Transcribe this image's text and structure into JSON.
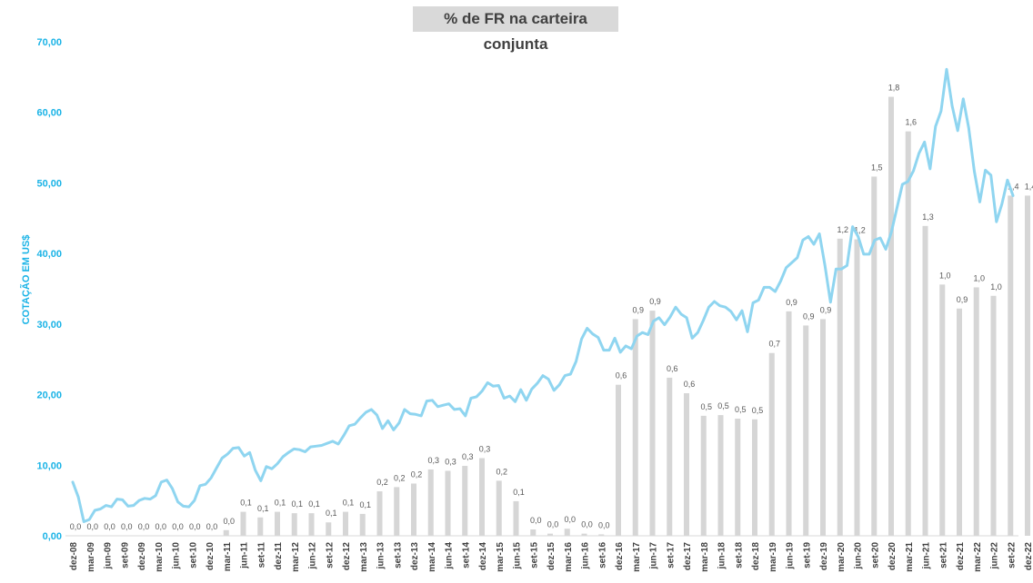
{
  "chart_data": {
    "type": "bar+line",
    "title": "% de FR na carteira conjunta",
    "ylabel": "COTAÇÃO EM US$",
    "ylim": [
      0,
      70
    ],
    "y_ticks": [
      "0,00",
      "10,00",
      "20,00",
      "30,00",
      "40,00",
      "50,00",
      "60,00",
      "70,00"
    ],
    "x_tick_labels": [
      "dez-08",
      "mar-09",
      "jun-09",
      "set-09",
      "dez-09",
      "mar-10",
      "jun-10",
      "set-10",
      "dez-10",
      "mar-11",
      "jun-11",
      "set-11",
      "dez-11",
      "mar-12",
      "jun-12",
      "set-12",
      "dez-12",
      "mar-13",
      "jun-13",
      "set-13",
      "dez-13",
      "mar-14",
      "jun-14",
      "set-14",
      "dez-14",
      "mar-15",
      "jun-15",
      "set-15",
      "dez-15",
      "mar-16",
      "jun-16",
      "set-16",
      "dez-16",
      "mar-17",
      "jun-17",
      "set-17",
      "dez-17",
      "mar-18",
      "jun-18",
      "set-18",
      "dez-18",
      "mar-19",
      "jun-19",
      "set-19",
      "dez-19",
      "mar-20",
      "jun-20",
      "set-20",
      "dez-20",
      "mar-21",
      "jun-21",
      "set-21",
      "dez-21",
      "mar-22",
      "jun-22",
      "set-22",
      "dez-22"
    ],
    "bars": {
      "values": [
        0.0,
        0.0,
        0.0,
        0.0,
        0.0,
        0.0,
        0.0,
        0.0,
        0.0,
        0.8,
        3.4,
        2.6,
        3.4,
        3.2,
        3.2,
        1.9,
        3.4,
        3.1,
        6.3,
        6.9,
        7.4,
        9.4,
        9.2,
        9.9,
        11.0,
        7.8,
        4.9,
        0.9,
        0.3,
        1.0,
        0.3,
        0.2,
        21.4,
        30.7,
        31.9,
        22.4,
        20.2,
        17.0,
        17.1,
        16.6,
        16.5,
        25.9,
        31.8,
        29.8,
        30.7,
        42.1,
        42.0,
        50.9,
        62.2,
        57.3,
        43.9,
        35.6,
        32.2,
        35.2,
        34.0,
        48.2,
        48.2
      ],
      "labels": [
        "0,0",
        "0,0",
        "0,0",
        "0,0",
        "0,0",
        "0,0",
        "0,0",
        "0,0",
        "0,0",
        "0,0",
        "0,1",
        "0,1",
        "0,1",
        "0,1",
        "0,1",
        "0,1",
        "0,1",
        "0,1",
        "0,2",
        "0,2",
        "0,2",
        "0,3",
        "0,3",
        "0,3",
        "0,3",
        "0,2",
        "0,1",
        "0,0",
        "0,0",
        "0,0",
        "0,0",
        "0,0",
        "0,6",
        "0,9",
        "0,9",
        "0,6",
        "0,6",
        "0,5",
        "0,5",
        "0,5",
        "0,5",
        "0,7",
        "0,9",
        "0,9",
        "0,9",
        "1,2",
        "1,2",
        "1,5",
        "1,8",
        "1,6",
        "1,3",
        "1,0",
        "0,9",
        "1,0",
        "1,0",
        "1,4",
        "1,4"
      ]
    },
    "line": {
      "values": [
        7.6,
        5.5,
        2.0,
        2.3,
        3.6,
        3.8,
        4.3,
        4.1,
        5.2,
        5.1,
        4.2,
        4.3,
        5.0,
        5.3,
        5.2,
        5.7,
        7.6,
        7.9,
        6.7,
        4.8,
        4.2,
        4.1,
        5.0,
        7.1,
        7.3,
        8.2,
        9.6,
        11.0,
        11.6,
        12.4,
        12.5,
        11.3,
        11.8,
        9.3,
        7.8,
        9.8,
        9.5,
        10.2,
        11.2,
        11.8,
        12.3,
        12.2,
        11.9,
        12.6,
        12.7,
        12.8,
        13.1,
        13.4,
        13.0,
        14.2,
        15.6,
        15.8,
        16.7,
        17.5,
        17.9,
        17.1,
        15.2,
        16.3,
        15.0,
        16.0,
        17.9,
        17.3,
        17.2,
        17.0,
        19.1,
        19.2,
        18.3,
        18.5,
        18.7,
        17.9,
        18.0,
        17.0,
        19.5,
        19.7,
        20.5,
        21.7,
        21.2,
        21.3,
        19.5,
        19.8,
        19.0,
        20.7,
        19.2,
        20.8,
        21.6,
        22.7,
        22.2,
        20.6,
        21.4,
        22.7,
        22.9,
        24.7,
        27.9,
        29.4,
        28.6,
        28.1,
        26.3,
        26.3,
        28.0,
        26.0,
        26.9,
        26.5,
        28.3,
        28.8,
        28.5,
        30.4,
        30.9,
        29.9,
        31.0,
        32.4,
        31.4,
        30.9,
        28.0,
        28.8,
        30.5,
        32.4,
        33.2,
        32.6,
        32.4,
        31.8,
        30.6,
        31.9,
        28.9,
        33.0,
        33.4,
        35.2,
        35.2,
        34.6,
        36.1,
        38.0,
        38.7,
        39.4,
        41.9,
        42.4,
        41.3,
        42.8,
        38.3,
        33.1,
        37.8,
        37.8,
        38.3,
        43.8,
        42.4,
        39.9,
        39.9,
        41.9,
        42.2,
        40.6,
        43.0,
        46.4,
        49.8,
        50.2,
        51.7,
        54.2,
        55.8,
        52.0,
        58.0,
        60.2,
        66.1,
        60.9,
        57.4,
        61.9,
        57.8,
        51.7,
        47.3,
        51.8,
        51.1,
        44.5,
        47.0,
        50.4,
        48.2
      ]
    }
  }
}
